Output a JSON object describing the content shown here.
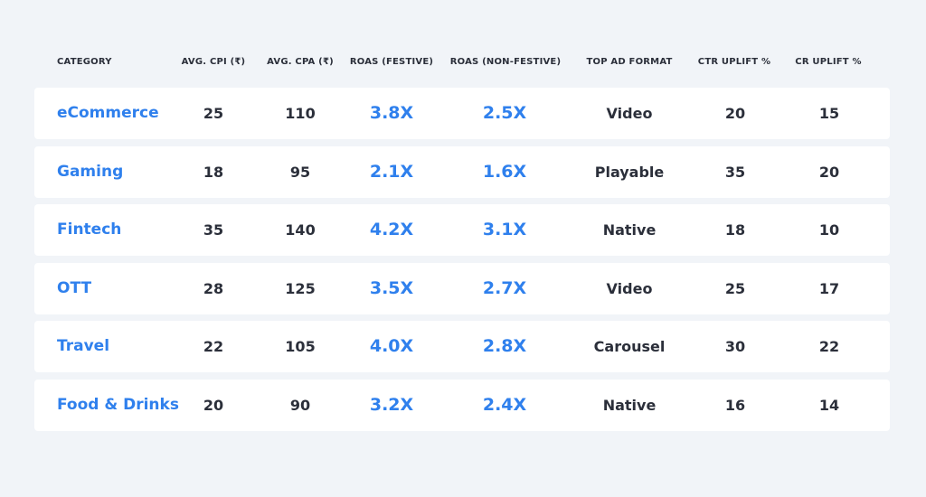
{
  "table": {
    "headers": [
      "CATEGORY",
      "AVG. CPI (₹)",
      "AVG. CPA (₹)",
      "ROAS (FESTIVE)",
      "ROAS (NON-FESTIVE)",
      "TOP AD FORMAT",
      "CTR UPLIFT %",
      "CR UPLIFT %"
    ],
    "rows": [
      {
        "category": "eCommerce",
        "cpi": "25",
        "cpa": "110",
        "roas_festive": "3.8X",
        "roas_non_festive": "2.5X",
        "ad_format": "Video",
        "ctr_uplift": "20",
        "cr_uplift": "15"
      },
      {
        "category": "Gaming",
        "cpi": "18",
        "cpa": "95",
        "roas_festive": "2.1X",
        "roas_non_festive": "1.6X",
        "ad_format": "Playable",
        "ctr_uplift": "35",
        "cr_uplift": "20"
      },
      {
        "category": "Fintech",
        "cpi": "35",
        "cpa": "140",
        "roas_festive": "4.2X",
        "roas_non_festive": "3.1X",
        "ad_format": "Native",
        "ctr_uplift": "18",
        "cr_uplift": "10"
      },
      {
        "category": "OTT",
        "cpi": "28",
        "cpa": "125",
        "roas_festive": "3.5X",
        "roas_non_festive": "2.7X",
        "ad_format": "Video",
        "ctr_uplift": "25",
        "cr_uplift": "17"
      },
      {
        "category": "Travel",
        "cpi": "22",
        "cpa": "105",
        "roas_festive": "4.0X",
        "roas_non_festive": "2.8X",
        "ad_format": "Carousel",
        "ctr_uplift": "30",
        "cr_uplift": "22"
      },
      {
        "category": "Food & Drinks",
        "cpi": "20",
        "cpa": "90",
        "roas_festive": "3.2X",
        "roas_non_festive": "2.4X",
        "ad_format": "Native",
        "ctr_uplift": "16",
        "cr_uplift": "14"
      }
    ]
  },
  "colors": {
    "background": "#f1f4f8",
    "row_background": "#ffffff",
    "accent_blue": "#2f80ed",
    "text_dark": "#2b2f3a"
  }
}
